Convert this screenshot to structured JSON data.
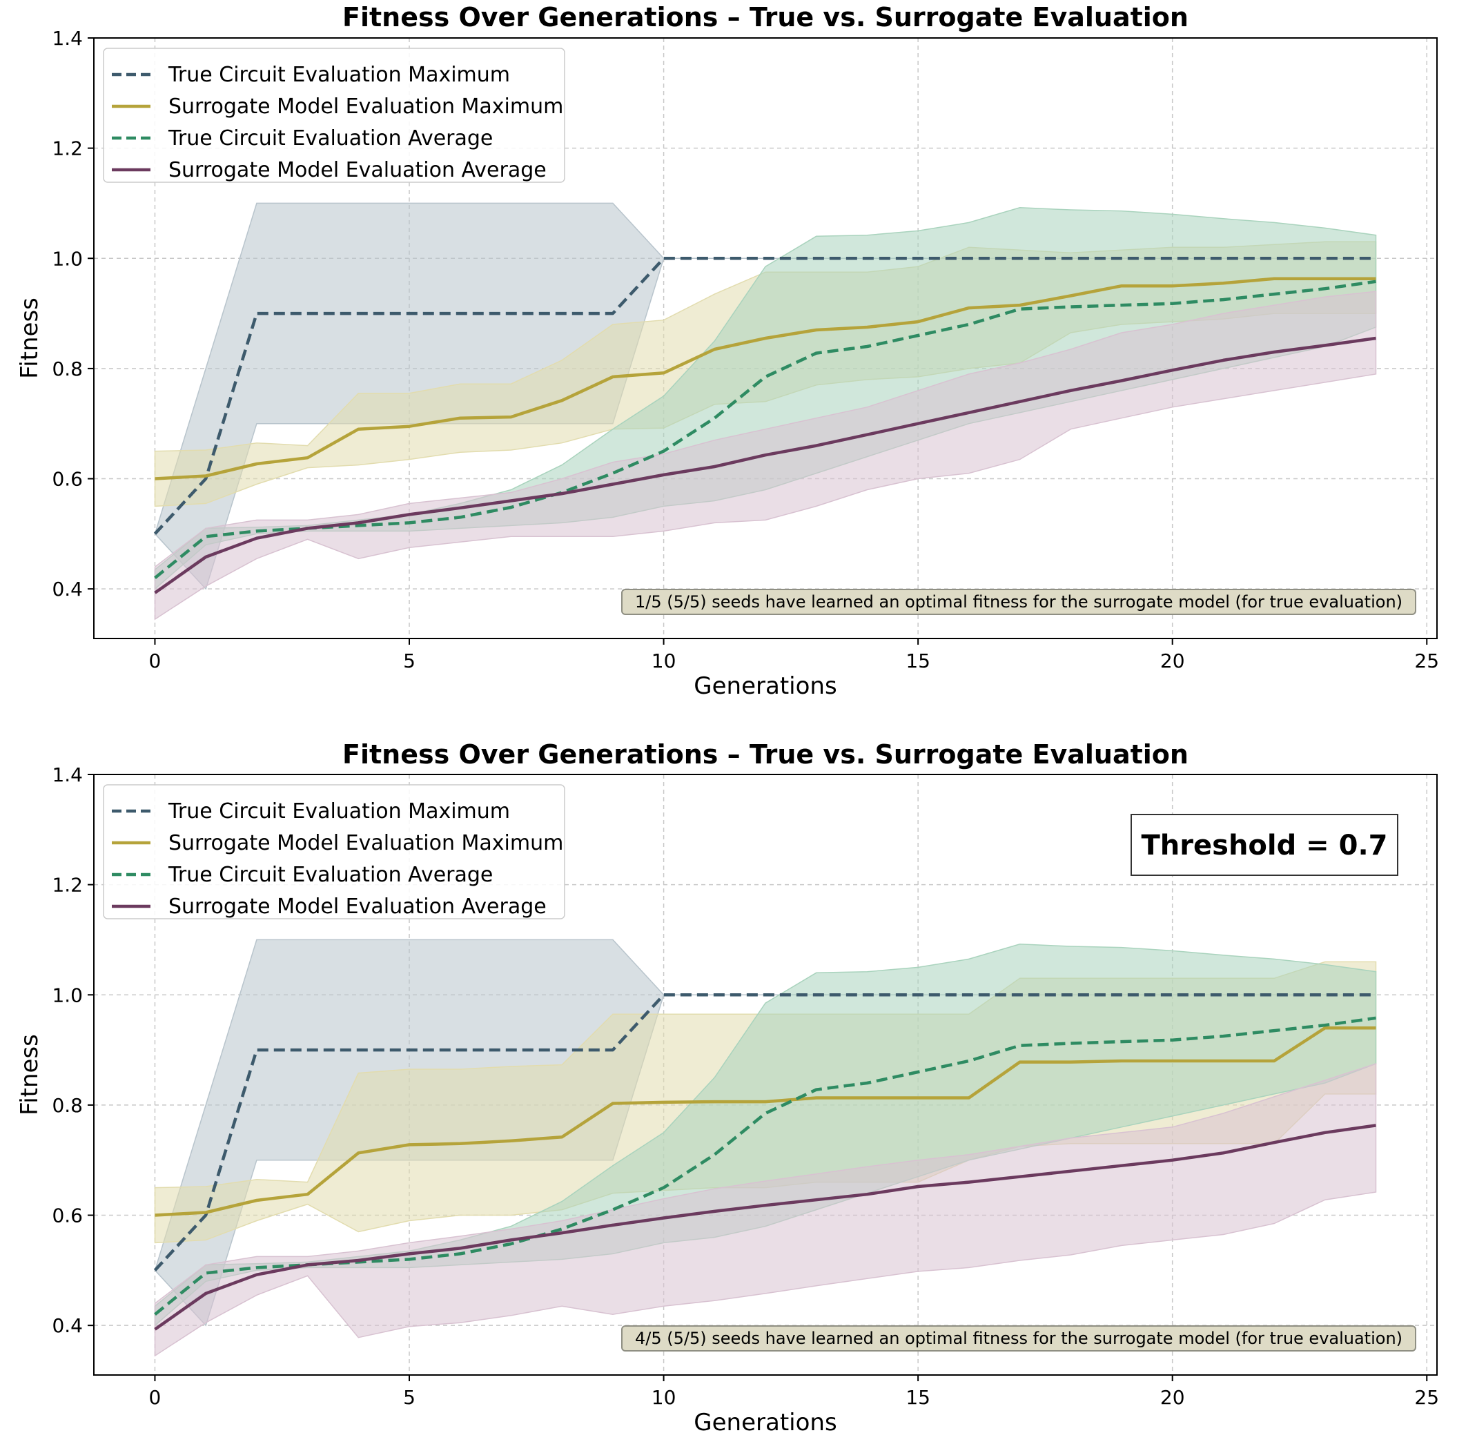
{
  "chart_data": [
    {
      "type": "line",
      "title": "Fitness Over Generations – True vs. Surrogate Evaluation",
      "xlabel": "Generations",
      "ylabel": "Fitness",
      "xlim": [
        -1.2,
        25.2
      ],
      "ylim": [
        0.31,
        1.4
      ],
      "xticks": [
        0,
        5,
        10,
        15,
        20,
        25
      ],
      "yticks": [
        0.4,
        0.6,
        0.8,
        1.0,
        1.2,
        1.4
      ],
      "ytick_labels": [
        "0.4",
        "0.6",
        "0.8",
        "1.0",
        "1.2",
        "1.4"
      ],
      "grid": true,
      "legend_position": "upper-left",
      "legend": [
        "True Circuit Evaluation Maximum",
        "Surrogate Model Evaluation Maximum",
        "True Circuit Evaluation Average",
        "Surrogate Model Evaluation Average"
      ],
      "annotation": "1/5 (5/5) seeds have learned an optimal fitness for the surrogate model (for true evaluation)",
      "x": [
        0,
        1,
        2,
        3,
        4,
        5,
        6,
        7,
        8,
        9,
        10,
        11,
        12,
        13,
        14,
        15,
        16,
        17,
        18,
        19,
        20,
        21,
        22,
        23,
        24
      ],
      "series": [
        {
          "name": "True Circuit Evaluation Maximum",
          "color": "#3d5a6c",
          "dash": true,
          "band_color": "#b8c4cc",
          "values": [
            0.5,
            0.6,
            0.9,
            0.9,
            0.9,
            0.9,
            0.9,
            0.9,
            0.9,
            0.9,
            1.0,
            1.0,
            1.0,
            1.0,
            1.0,
            1.0,
            1.0,
            1.0,
            1.0,
            1.0,
            1.0,
            1.0,
            1.0,
            1.0,
            1.0
          ],
          "lower": [
            0.5,
            0.4,
            0.7,
            0.7,
            0.7,
            0.7,
            0.7,
            0.7,
            0.7,
            0.7,
            1.0,
            1.0,
            1.0,
            1.0,
            1.0,
            1.0,
            1.0,
            1.0,
            1.0,
            1.0,
            1.0,
            1.0,
            1.0,
            1.0,
            1.0
          ],
          "upper": [
            0.5,
            0.8,
            1.1,
            1.1,
            1.1,
            1.1,
            1.1,
            1.1,
            1.1,
            1.1,
            1.0,
            1.0,
            1.0,
            1.0,
            1.0,
            1.0,
            1.0,
            1.0,
            1.0,
            1.0,
            1.0,
            1.0,
            1.0,
            1.0,
            1.0
          ]
        },
        {
          "name": "Surrogate Model Evaluation Maximum",
          "color": "#b5a33a",
          "dash": false,
          "band_color": "#e2dcae",
          "values": [
            0.6,
            0.605,
            0.627,
            0.638,
            0.69,
            0.695,
            0.71,
            0.712,
            0.742,
            0.785,
            0.792,
            0.835,
            0.855,
            0.87,
            0.875,
            0.885,
            0.91,
            0.915,
            0.932,
            0.95,
            0.95,
            0.955,
            0.963,
            0.963,
            0.963
          ],
          "lower": [
            0.55,
            0.555,
            0.59,
            0.62,
            0.625,
            0.635,
            0.648,
            0.652,
            0.665,
            0.69,
            0.692,
            0.735,
            0.74,
            0.77,
            0.78,
            0.785,
            0.8,
            0.81,
            0.865,
            0.88,
            0.885,
            0.89,
            0.9,
            0.9,
            0.9
          ],
          "upper": [
            0.65,
            0.652,
            0.665,
            0.66,
            0.755,
            0.755,
            0.772,
            0.772,
            0.815,
            0.88,
            0.888,
            0.935,
            0.975,
            0.975,
            0.975,
            0.985,
            1.02,
            1.015,
            1.01,
            1.015,
            1.02,
            1.02,
            1.025,
            1.03,
            1.03
          ]
        },
        {
          "name": "True Circuit Evaluation Average",
          "color": "#2e8b62",
          "dash": true,
          "band_color": "#a9d3bd",
          "values": [
            0.42,
            0.495,
            0.505,
            0.51,
            0.515,
            0.52,
            0.53,
            0.548,
            0.575,
            0.61,
            0.65,
            0.71,
            0.785,
            0.828,
            0.84,
            0.86,
            0.88,
            0.908,
            0.912,
            0.915,
            0.918,
            0.925,
            0.935,
            0.945,
            0.958
          ],
          "lower": [
            0.4,
            0.48,
            0.5,
            0.505,
            0.505,
            0.505,
            0.51,
            0.515,
            0.52,
            0.53,
            0.55,
            0.56,
            0.58,
            0.61,
            0.64,
            0.67,
            0.7,
            0.72,
            0.74,
            0.76,
            0.78,
            0.8,
            0.82,
            0.84,
            0.875
          ],
          "upper": [
            0.435,
            0.51,
            0.512,
            0.515,
            0.525,
            0.535,
            0.555,
            0.58,
            0.625,
            0.69,
            0.75,
            0.85,
            0.985,
            1.04,
            1.042,
            1.05,
            1.065,
            1.092,
            1.088,
            1.086,
            1.08,
            1.072,
            1.065,
            1.055,
            1.042
          ]
        },
        {
          "name": "Surrogate Model Evaluation Average",
          "color": "#6b3a5e",
          "dash": false,
          "band_color": "#d8c2d1",
          "values": [
            0.393,
            0.458,
            0.492,
            0.51,
            0.52,
            0.535,
            0.547,
            0.56,
            0.573,
            0.59,
            0.607,
            0.622,
            0.643,
            0.66,
            0.68,
            0.7,
            0.72,
            0.74,
            0.76,
            0.778,
            0.797,
            0.815,
            0.83,
            0.842,
            0.855
          ],
          "lower": [
            0.345,
            0.405,
            0.455,
            0.49,
            0.455,
            0.475,
            0.485,
            0.495,
            0.495,
            0.495,
            0.505,
            0.52,
            0.525,
            0.55,
            0.58,
            0.6,
            0.61,
            0.635,
            0.69,
            0.71,
            0.73,
            0.745,
            0.76,
            0.775,
            0.79
          ],
          "upper": [
            0.44,
            0.51,
            0.525,
            0.525,
            0.535,
            0.555,
            0.565,
            0.575,
            0.6,
            0.63,
            0.645,
            0.67,
            0.69,
            0.71,
            0.73,
            0.76,
            0.79,
            0.81,
            0.835,
            0.865,
            0.88,
            0.9,
            0.915,
            0.93,
            0.94
          ]
        }
      ]
    },
    {
      "type": "line",
      "title": "Fitness Over Generations – True vs. Surrogate Evaluation",
      "xlabel": "Generations",
      "ylabel": "Fitness",
      "xlim": [
        -1.2,
        25.2
      ],
      "ylim": [
        0.31,
        1.4
      ],
      "xticks": [
        0,
        5,
        10,
        15,
        20,
        25
      ],
      "yticks": [
        0.4,
        0.6,
        0.8,
        1.0,
        1.2,
        1.4
      ],
      "ytick_labels": [
        "0.4",
        "0.6",
        "0.8",
        "1.0",
        "1.2",
        "1.4"
      ],
      "grid": true,
      "legend_position": "upper-left",
      "legend": [
        "True Circuit Evaluation Maximum",
        "Surrogate Model Evaluation Maximum",
        "True Circuit Evaluation Average",
        "Surrogate Model Evaluation Average"
      ],
      "annotation": "4/5 (5/5) seeds have learned an optimal fitness for the surrogate model (for true evaluation)",
      "threshold_label": "Threshold = 0.7",
      "x": [
        0,
        1,
        2,
        3,
        4,
        5,
        6,
        7,
        8,
        9,
        10,
        11,
        12,
        13,
        14,
        15,
        16,
        17,
        18,
        19,
        20,
        21,
        22,
        23,
        24
      ],
      "series": [
        {
          "name": "True Circuit Evaluation Maximum",
          "color": "#3d5a6c",
          "dash": true,
          "band_color": "#b8c4cc",
          "values": [
            0.5,
            0.6,
            0.9,
            0.9,
            0.9,
            0.9,
            0.9,
            0.9,
            0.9,
            0.9,
            1.0,
            1.0,
            1.0,
            1.0,
            1.0,
            1.0,
            1.0,
            1.0,
            1.0,
            1.0,
            1.0,
            1.0,
            1.0,
            1.0,
            1.0
          ],
          "lower": [
            0.5,
            0.4,
            0.7,
            0.7,
            0.7,
            0.7,
            0.7,
            0.7,
            0.7,
            0.7,
            1.0,
            1.0,
            1.0,
            1.0,
            1.0,
            1.0,
            1.0,
            1.0,
            1.0,
            1.0,
            1.0,
            1.0,
            1.0,
            1.0,
            1.0
          ],
          "upper": [
            0.5,
            0.8,
            1.1,
            1.1,
            1.1,
            1.1,
            1.1,
            1.1,
            1.1,
            1.1,
            1.0,
            1.0,
            1.0,
            1.0,
            1.0,
            1.0,
            1.0,
            1.0,
            1.0,
            1.0,
            1.0,
            1.0,
            1.0,
            1.0,
            1.0
          ]
        },
        {
          "name": "Surrogate Model Evaluation Maximum",
          "color": "#b5a33a",
          "dash": false,
          "band_color": "#e2dcae",
          "values": [
            0.6,
            0.605,
            0.627,
            0.638,
            0.713,
            0.728,
            0.73,
            0.735,
            0.742,
            0.803,
            0.805,
            0.806,
            0.806,
            0.813,
            0.813,
            0.813,
            0.813,
            0.878,
            0.878,
            0.88,
            0.88,
            0.88,
            0.88,
            0.94,
            0.94
          ],
          "lower": [
            0.55,
            0.555,
            0.59,
            0.62,
            0.57,
            0.59,
            0.6,
            0.6,
            0.61,
            0.64,
            0.645,
            0.65,
            0.65,
            0.66,
            0.66,
            0.66,
            0.7,
            0.725,
            0.73,
            0.73,
            0.73,
            0.73,
            0.73,
            0.82,
            0.82
          ],
          "upper": [
            0.65,
            0.652,
            0.665,
            0.66,
            0.858,
            0.865,
            0.865,
            0.87,
            0.873,
            0.965,
            0.965,
            0.965,
            0.965,
            0.965,
            0.965,
            0.965,
            0.965,
            1.03,
            1.03,
            1.03,
            1.03,
            1.03,
            1.03,
            1.06,
            1.06
          ]
        },
        {
          "name": "True Circuit Evaluation Average",
          "color": "#2e8b62",
          "dash": true,
          "band_color": "#a9d3bd",
          "values": [
            0.42,
            0.495,
            0.505,
            0.51,
            0.515,
            0.52,
            0.53,
            0.548,
            0.575,
            0.61,
            0.65,
            0.71,
            0.785,
            0.828,
            0.84,
            0.86,
            0.88,
            0.908,
            0.912,
            0.915,
            0.918,
            0.925,
            0.935,
            0.945,
            0.958
          ],
          "lower": [
            0.4,
            0.48,
            0.5,
            0.505,
            0.505,
            0.505,
            0.51,
            0.515,
            0.52,
            0.53,
            0.55,
            0.56,
            0.58,
            0.61,
            0.64,
            0.67,
            0.7,
            0.72,
            0.74,
            0.76,
            0.78,
            0.8,
            0.82,
            0.84,
            0.875
          ],
          "upper": [
            0.435,
            0.51,
            0.512,
            0.515,
            0.525,
            0.535,
            0.555,
            0.58,
            0.625,
            0.69,
            0.75,
            0.85,
            0.985,
            1.04,
            1.042,
            1.05,
            1.065,
            1.092,
            1.088,
            1.086,
            1.08,
            1.072,
            1.065,
            1.055,
            1.042
          ]
        },
        {
          "name": "Surrogate Model Evaluation Average",
          "color": "#6b3a5e",
          "dash": false,
          "band_color": "#d8c2d1",
          "values": [
            0.393,
            0.458,
            0.492,
            0.51,
            0.518,
            0.53,
            0.54,
            0.555,
            0.568,
            0.582,
            0.595,
            0.607,
            0.618,
            0.628,
            0.638,
            0.652,
            0.66,
            0.67,
            0.68,
            0.69,
            0.7,
            0.713,
            0.732,
            0.75,
            0.763
          ],
          "lower": [
            0.345,
            0.405,
            0.455,
            0.49,
            0.378,
            0.398,
            0.405,
            0.418,
            0.435,
            0.42,
            0.435,
            0.445,
            0.458,
            0.472,
            0.485,
            0.498,
            0.505,
            0.518,
            0.528,
            0.545,
            0.555,
            0.565,
            0.585,
            0.628,
            0.642
          ],
          "upper": [
            0.44,
            0.51,
            0.525,
            0.525,
            0.535,
            0.55,
            0.562,
            0.575,
            0.59,
            0.61,
            0.63,
            0.648,
            0.662,
            0.675,
            0.688,
            0.7,
            0.71,
            0.725,
            0.74,
            0.75,
            0.76,
            0.785,
            0.815,
            0.845,
            0.875
          ]
        }
      ]
    }
  ]
}
